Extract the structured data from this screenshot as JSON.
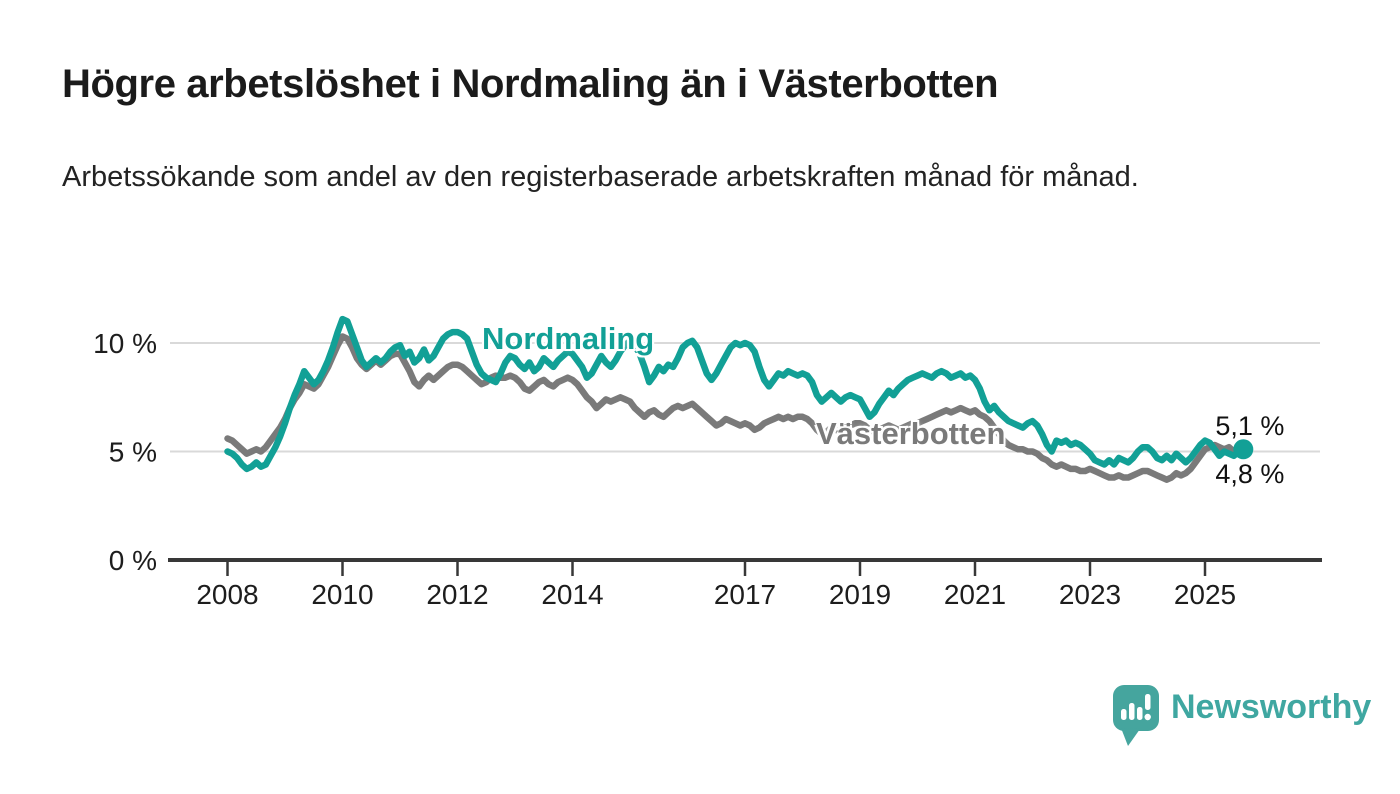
{
  "page": {
    "title": "Högre arbetslöshet i Nordmaling än i Västerbotten",
    "subtitle": "Arbetssökande som andel av den registerbaserade arbetskraften månad för månad."
  },
  "annotations": {
    "end_value_nordmaling": "5,1 %",
    "end_value_vasterbotten": "4,8 %"
  },
  "branding": {
    "logo_text": "Newsworthy",
    "logo_icon": "newsworthy-speech-bubble-bar-chart-icon",
    "brand_color": "#45a59e",
    "text_color": "#3fa7a1"
  },
  "chart_data": {
    "type": "line",
    "title": "Högre arbetslöshet i Nordmaling än i Västerbotten",
    "subtitle": "Arbetssökande som andel av den registerbaserade arbetskraften månad för månad.",
    "unit": "%",
    "grid": "horizontal",
    "x_start_year": 2008.0,
    "x_step_years": 0.0833333,
    "x_period": "monthly 2008-01 to 2025-09",
    "x_axis_range": [
      2007,
      2027
    ],
    "y_axis_range": [
      0,
      11.6
    ],
    "x_ticks": [
      {
        "value": 2008,
        "label": "2008"
      },
      {
        "value": 2010,
        "label": "2010"
      },
      {
        "value": 2012,
        "label": "2012"
      },
      {
        "value": 2014,
        "label": "2014"
      },
      {
        "value": 2017,
        "label": "2017"
      },
      {
        "value": 2019,
        "label": "2019"
      },
      {
        "value": 2021,
        "label": "2021"
      },
      {
        "value": 2023,
        "label": "2023"
      },
      {
        "value": 2025,
        "label": "2025"
      }
    ],
    "y_ticks": [
      {
        "value": 0,
        "label": "0 %"
      },
      {
        "value": 5,
        "label": "5 %"
      },
      {
        "value": 10,
        "label": "10 %"
      }
    ],
    "series": [
      {
        "name": "Nordmaling",
        "color": "#12a096",
        "end_dot": true,
        "end_value_label": "5,1 %",
        "values": [
          5.0,
          4.9,
          4.7,
          4.4,
          4.2,
          4.3,
          4.5,
          4.3,
          4.4,
          4.8,
          5.2,
          5.7,
          6.3,
          7.0,
          7.6,
          8.1,
          8.7,
          8.4,
          8.1,
          8.3,
          8.7,
          9.2,
          9.8,
          10.5,
          11.1,
          11.0,
          10.4,
          9.8,
          9.2,
          8.9,
          9.1,
          9.3,
          9.1,
          9.3,
          9.6,
          9.8,
          9.9,
          9.4,
          9.6,
          9.1,
          9.3,
          9.7,
          9.2,
          9.4,
          9.8,
          10.2,
          10.4,
          10.5,
          10.5,
          10.4,
          10.2,
          9.6,
          9.0,
          8.6,
          8.4,
          8.3,
          8.2,
          8.6,
          9.1,
          9.4,
          9.3,
          9.0,
          8.8,
          9.1,
          8.7,
          8.9,
          9.3,
          9.1,
          8.9,
          9.2,
          9.4,
          9.6,
          9.5,
          9.2,
          8.9,
          8.4,
          8.6,
          9.0,
          9.4,
          9.1,
          8.9,
          9.2,
          9.6,
          9.9,
          10.1,
          9.9,
          9.5,
          8.9,
          8.2,
          8.5,
          8.9,
          8.7,
          9.0,
          8.9,
          9.3,
          9.8,
          10.0,
          10.1,
          9.8,
          9.2,
          8.6,
          8.3,
          8.6,
          9.0,
          9.4,
          9.8,
          10.0,
          9.9,
          10.0,
          9.9,
          9.6,
          8.9,
          8.3,
          8.0,
          8.3,
          8.6,
          8.5,
          8.7,
          8.6,
          8.5,
          8.6,
          8.5,
          8.2,
          7.6,
          7.3,
          7.5,
          7.7,
          7.5,
          7.3,
          7.5,
          7.6,
          7.5,
          7.4,
          7.0,
          6.6,
          6.8,
          7.2,
          7.5,
          7.8,
          7.6,
          7.9,
          8.1,
          8.3,
          8.4,
          8.5,
          8.6,
          8.5,
          8.4,
          8.6,
          8.7,
          8.6,
          8.4,
          8.5,
          8.6,
          8.4,
          8.5,
          8.3,
          7.9,
          7.3,
          6.9,
          7.1,
          6.8,
          6.6,
          6.4,
          6.3,
          6.2,
          6.1,
          6.3,
          6.4,
          6.2,
          5.8,
          5.3,
          5.0,
          5.5,
          5.4,
          5.5,
          5.3,
          5.4,
          5.3,
          5.1,
          4.9,
          4.6,
          4.5,
          4.4,
          4.6,
          4.4,
          4.7,
          4.6,
          4.5,
          4.7,
          5.0,
          5.2,
          5.2,
          5.0,
          4.7,
          4.6,
          4.8,
          4.6,
          4.9,
          4.7,
          4.5,
          4.7,
          5.0,
          5.3,
          5.5,
          5.4,
          5.1,
          4.8,
          5.0,
          4.9,
          4.8,
          5.0,
          5.1
        ]
      },
      {
        "name": "Västerbotten",
        "color": "#7a7a7a",
        "end_dot": false,
        "end_value_label": "4,8 %",
        "values": [
          5.6,
          5.5,
          5.3,
          5.1,
          4.9,
          5.0,
          5.1,
          5.0,
          5.2,
          5.5,
          5.8,
          6.1,
          6.5,
          7.0,
          7.4,
          7.7,
          8.1,
          8.0,
          7.9,
          8.1,
          8.5,
          8.9,
          9.4,
          9.9,
          10.3,
          10.2,
          9.8,
          9.3,
          9.0,
          8.8,
          9.0,
          9.2,
          9.0,
          9.2,
          9.4,
          9.5,
          9.5,
          9.1,
          8.7,
          8.2,
          8.0,
          8.3,
          8.5,
          8.3,
          8.5,
          8.7,
          8.9,
          9.0,
          9.0,
          8.9,
          8.7,
          8.5,
          8.3,
          8.1,
          8.2,
          8.4,
          8.5,
          8.4,
          8.4,
          8.5,
          8.4,
          8.2,
          7.9,
          7.8,
          8.0,
          8.2,
          8.3,
          8.1,
          8.0,
          8.2,
          8.3,
          8.4,
          8.3,
          8.1,
          7.8,
          7.5,
          7.3,
          7.0,
          7.2,
          7.4,
          7.3,
          7.4,
          7.5,
          7.4,
          7.3,
          7.0,
          6.8,
          6.6,
          6.8,
          6.9,
          6.7,
          6.6,
          6.8,
          7.0,
          7.1,
          7.0,
          7.1,
          7.2,
          7.0,
          6.8,
          6.6,
          6.4,
          6.2,
          6.3,
          6.5,
          6.4,
          6.3,
          6.2,
          6.3,
          6.2,
          6.0,
          6.1,
          6.3,
          6.4,
          6.5,
          6.6,
          6.5,
          6.6,
          6.5,
          6.6,
          6.6,
          6.5,
          6.3,
          6.0,
          5.8,
          5.9,
          6.1,
          6.0,
          5.9,
          6.1,
          6.2,
          6.3,
          6.3,
          6.2,
          6.0,
          5.9,
          6.0,
          6.1,
          6.2,
          6.1,
          6.0,
          6.1,
          6.2,
          6.3,
          6.3,
          6.4,
          6.5,
          6.6,
          6.7,
          6.8,
          6.9,
          6.8,
          6.9,
          7.0,
          6.9,
          6.8,
          6.9,
          6.7,
          6.6,
          6.4,
          6.1,
          5.8,
          5.5,
          5.3,
          5.2,
          5.1,
          5.1,
          5.0,
          5.0,
          4.9,
          4.7,
          4.6,
          4.4,
          4.3,
          4.4,
          4.3,
          4.2,
          4.2,
          4.1,
          4.1,
          4.2,
          4.1,
          4.0,
          3.9,
          3.8,
          3.8,
          3.9,
          3.8,
          3.8,
          3.9,
          4.0,
          4.1,
          4.1,
          4.0,
          3.9,
          3.8,
          3.7,
          3.8,
          4.0,
          3.9,
          4.0,
          4.2,
          4.5,
          4.8,
          5.1,
          5.2,
          5.3,
          5.2,
          5.1,
          5.2,
          5.0,
          4.9,
          4.8
        ]
      }
    ]
  }
}
